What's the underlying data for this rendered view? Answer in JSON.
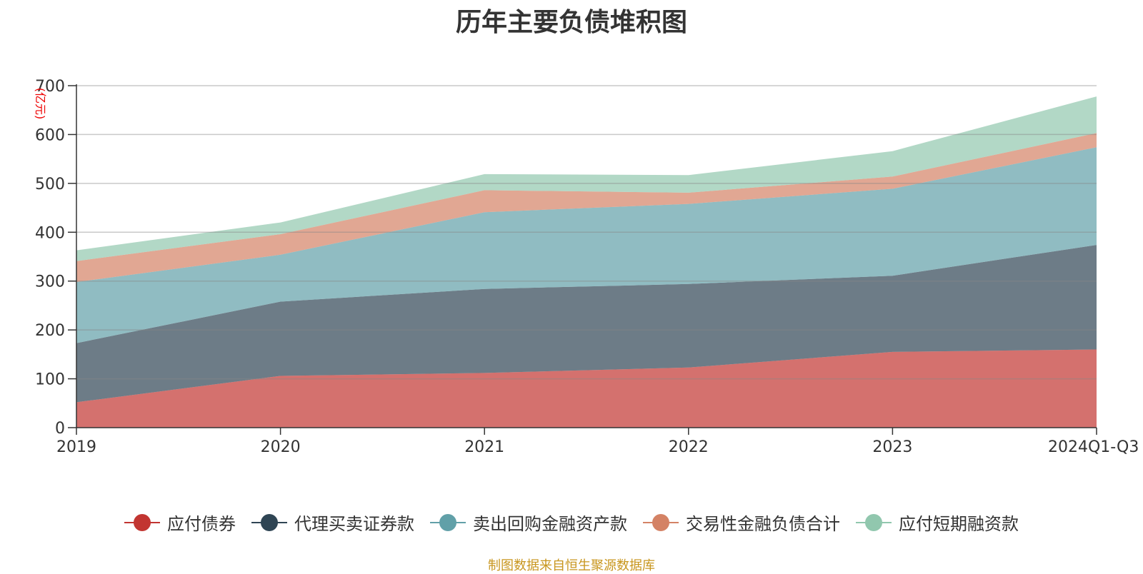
{
  "chart_data": {
    "type": "area",
    "stacked": true,
    "title": "历年主要负债堆积图",
    "ylabel": "(亿元)",
    "xlabel": "",
    "ylim": [
      0,
      700
    ],
    "yticks": [
      0,
      100,
      200,
      300,
      400,
      500,
      600,
      700
    ],
    "categories": [
      "2019",
      "2020",
      "2021",
      "2022",
      "2023",
      "2024Q1-Q3"
    ],
    "series": [
      {
        "name": "应付债券",
        "color": "#c23531",
        "values": [
          52,
          106,
          112,
          123,
          155,
          160
        ]
      },
      {
        "name": "代理买卖证券款",
        "color": "#2f4554",
        "values": [
          121,
          152,
          172,
          171,
          156,
          214
        ]
      },
      {
        "name": "卖出回购金融资产款",
        "color": "#61a0a8",
        "values": [
          125,
          96,
          157,
          164,
          178,
          200
        ]
      },
      {
        "name": "交易性金融负债合计",
        "color": "#d48265",
        "values": [
          43,
          42,
          45,
          23,
          25,
          29
        ]
      },
      {
        "name": "应付短期融资款",
        "color": "#91c7ae",
        "values": [
          22,
          24,
          33,
          36,
          52,
          75
        ]
      }
    ],
    "grid": true,
    "legend_position": "bottom"
  },
  "footer": {
    "source": "制图数据来自恒生聚源数据库"
  }
}
